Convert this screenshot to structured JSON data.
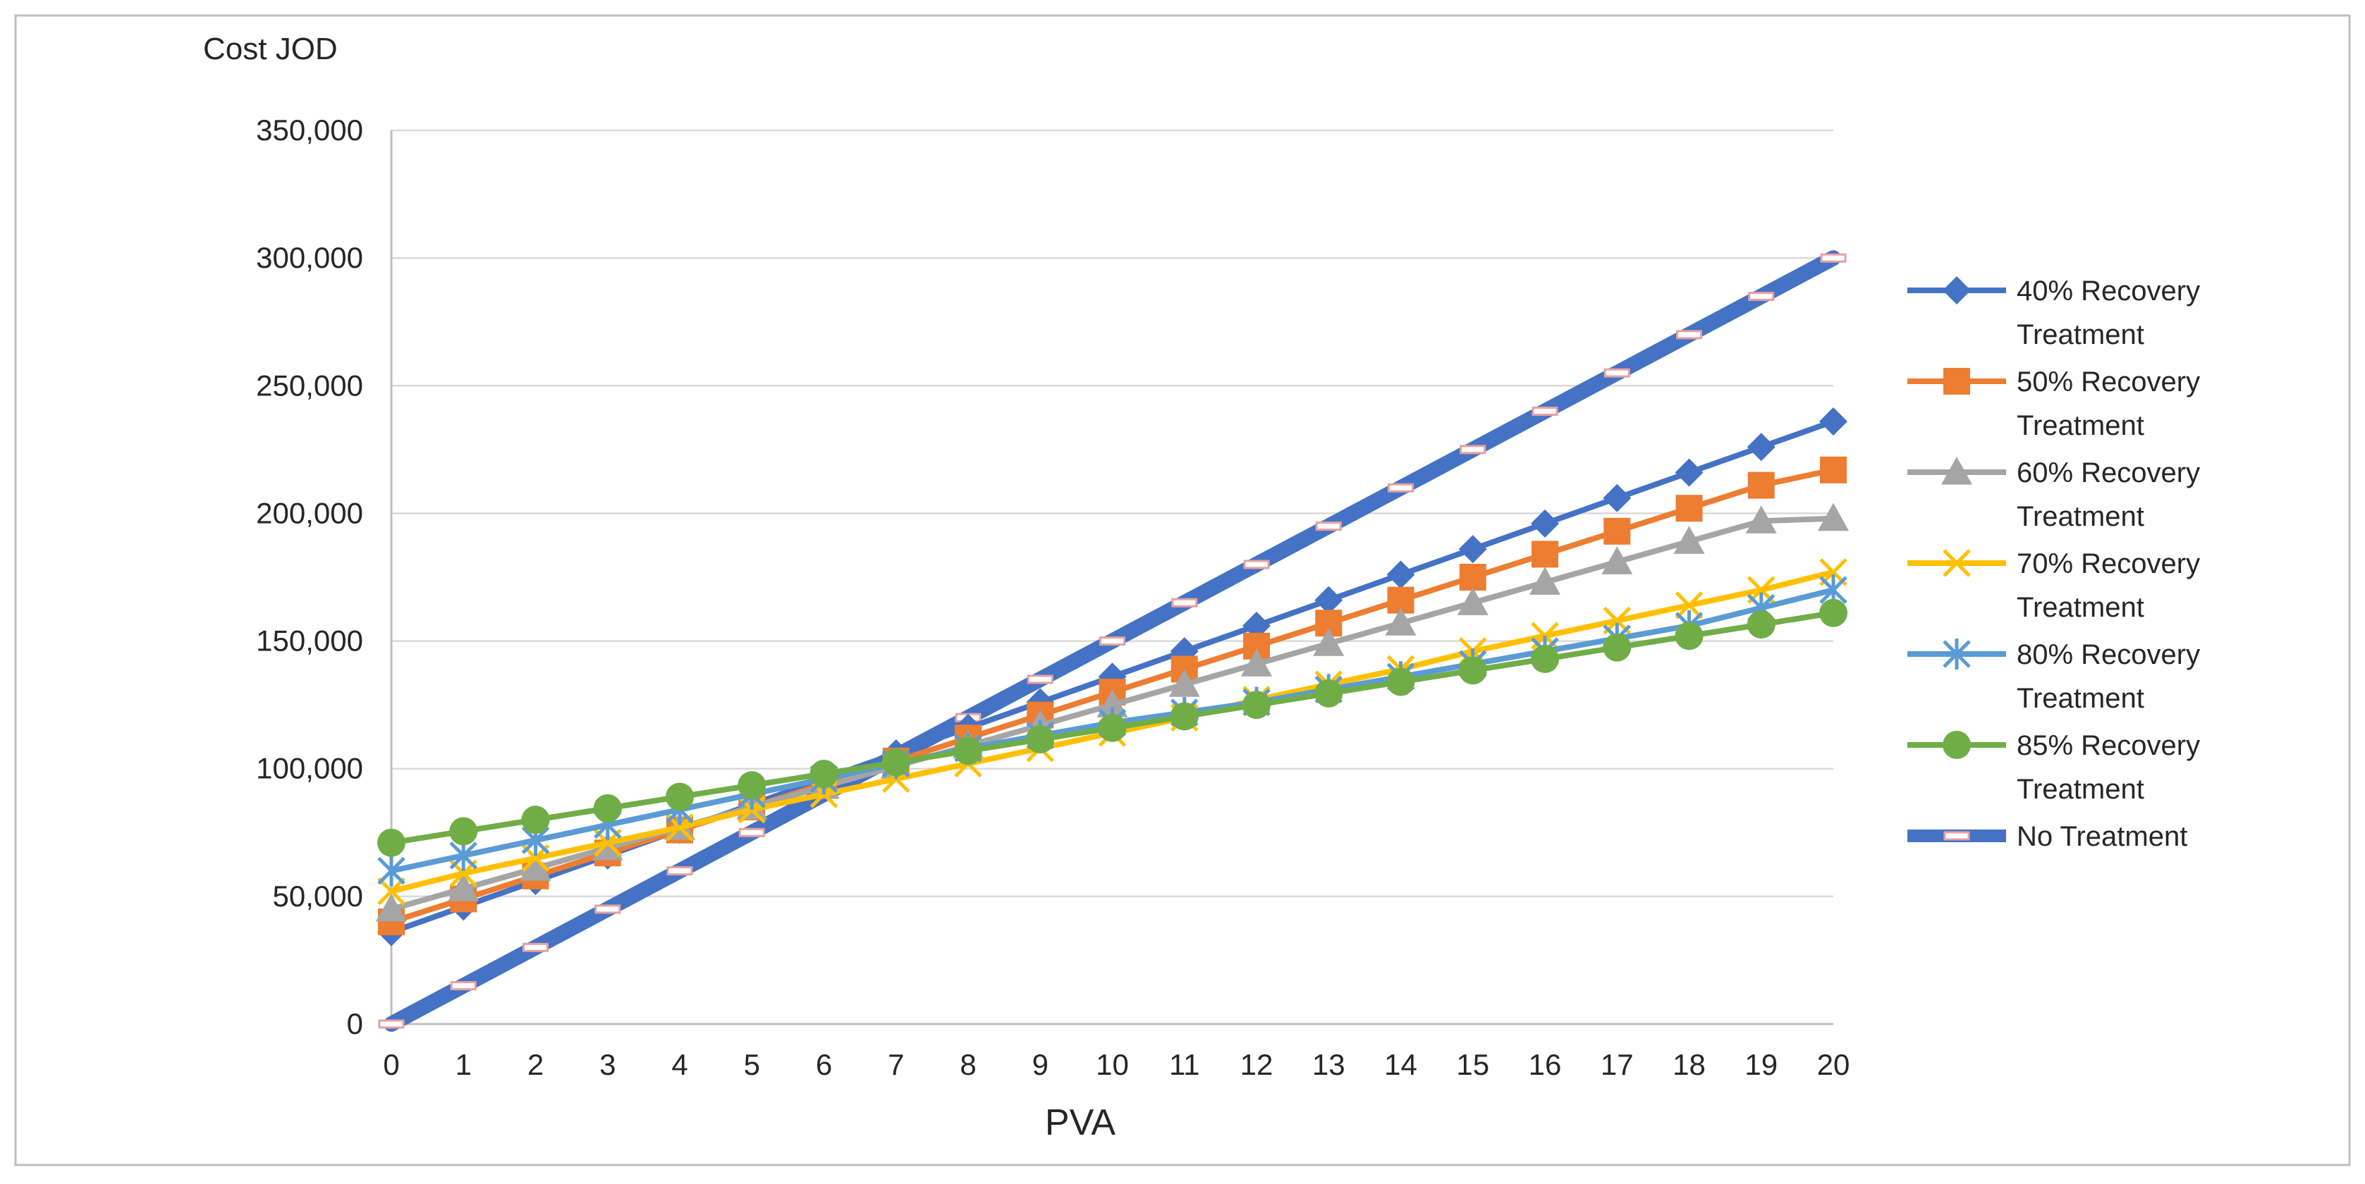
{
  "chart_data": {
    "type": "line",
    "title": "",
    "xlabel": "PVA",
    "ylabel": "Cost JOD",
    "x": [
      0,
      1,
      2,
      3,
      4,
      5,
      6,
      7,
      8,
      9,
      10,
      11,
      12,
      13,
      14,
      15,
      16,
      17,
      18,
      19,
      20
    ],
    "x_tick_labels": [
      "0",
      "1",
      "2",
      "3",
      "4",
      "5",
      "6",
      "7",
      "8",
      "9",
      "10",
      "11",
      "12",
      "13",
      "14",
      "15",
      "16",
      "17",
      "18",
      "19",
      "20"
    ],
    "ylim": [
      0,
      350000
    ],
    "y_ticks": [
      0,
      50000,
      100000,
      150000,
      200000,
      250000,
      300000,
      350000
    ],
    "y_tick_labels": [
      "0",
      "50,000",
      "100,000",
      "150,000",
      "200,000",
      "250,000",
      "300,000",
      "350,000"
    ],
    "grid": true,
    "legend_position": "right",
    "series": [
      {
        "name": "40% Recovery Treatment",
        "legend_lines": [
          "40% Recovery",
          "Treatment"
        ],
        "color": "#4472C4",
        "marker": "diamond",
        "values": [
          36000,
          46000,
          56000,
          66000,
          76000,
          86000,
          96000,
          106000,
          116000,
          126000,
          136000,
          146000,
          156000,
          166000,
          176000,
          186000,
          196000,
          206000,
          216000,
          226000,
          236000
        ]
      },
      {
        "name": "50% Recovery Treatment",
        "legend_lines": [
          "50% Recovery",
          "Treatment"
        ],
        "color": "#ED7D31",
        "marker": "square",
        "values": [
          40000,
          49000,
          58000,
          67000,
          76000,
          85000,
          94000,
          103000,
          112000,
          121000,
          130000,
          139000,
          148000,
          157000,
          166000,
          175000,
          184000,
          193000,
          202000,
          211000,
          217000
        ]
      },
      {
        "name": "60% Recovery Treatment",
        "legend_lines": [
          "60% Recovery",
          "Treatment"
        ],
        "color": "#A5A5A5",
        "marker": "triangle",
        "values": [
          45000,
          53000,
          61000,
          69000,
          77000,
          85000,
          93000,
          101000,
          109000,
          117000,
          125000,
          133000,
          141000,
          149000,
          157000,
          165000,
          173000,
          181000,
          189000,
          197000,
          198000
        ]
      },
      {
        "name": "70% Recovery Treatment",
        "legend_lines": [
          "70% Recovery",
          "Treatment"
        ],
        "color": "#FFC000",
        "marker": "x",
        "values": [
          52000,
          59000,
          65000,
          71000,
          77000,
          84000,
          90000,
          96000,
          102000,
          108000,
          114000,
          120000,
          127000,
          133000,
          139000,
          146000,
          152000,
          158000,
          164000,
          170000,
          177000
        ]
      },
      {
        "name": "80% Recovery Treatment",
        "legend_lines": [
          "80% Recovery",
          "Treatment"
        ],
        "color": "#5B9BD5",
        "marker": "star",
        "values": [
          60000,
          66000,
          72000,
          78000,
          84000,
          90000,
          96000,
          102000,
          108000,
          113000,
          118000,
          122000,
          126000,
          131000,
          136000,
          141000,
          146000,
          151000,
          156000,
          163000,
          170000
        ]
      },
      {
        "name": "85% Recovery Treatment",
        "legend_lines": [
          "85% Recovery",
          "Treatment"
        ],
        "color": "#70AD47",
        "marker": "circle",
        "values": [
          71000,
          75500,
          80000,
          84500,
          89000,
          93500,
          98000,
          102500,
          107000,
          111500,
          116000,
          120500,
          125000,
          129500,
          134000,
          138500,
          143000,
          147500,
          152000,
          156500,
          161000
        ]
      },
      {
        "name": "No Treatment",
        "legend_lines": [
          "No Treatment"
        ],
        "color": "#4472C4",
        "marker": "dash",
        "values": [
          0,
          15000,
          30000,
          45000,
          60000,
          75000,
          90000,
          105000,
          120000,
          135000,
          150000,
          165000,
          180000,
          195000,
          210000,
          225000,
          240000,
          255000,
          270000,
          285000,
          300000
        ]
      }
    ]
  }
}
